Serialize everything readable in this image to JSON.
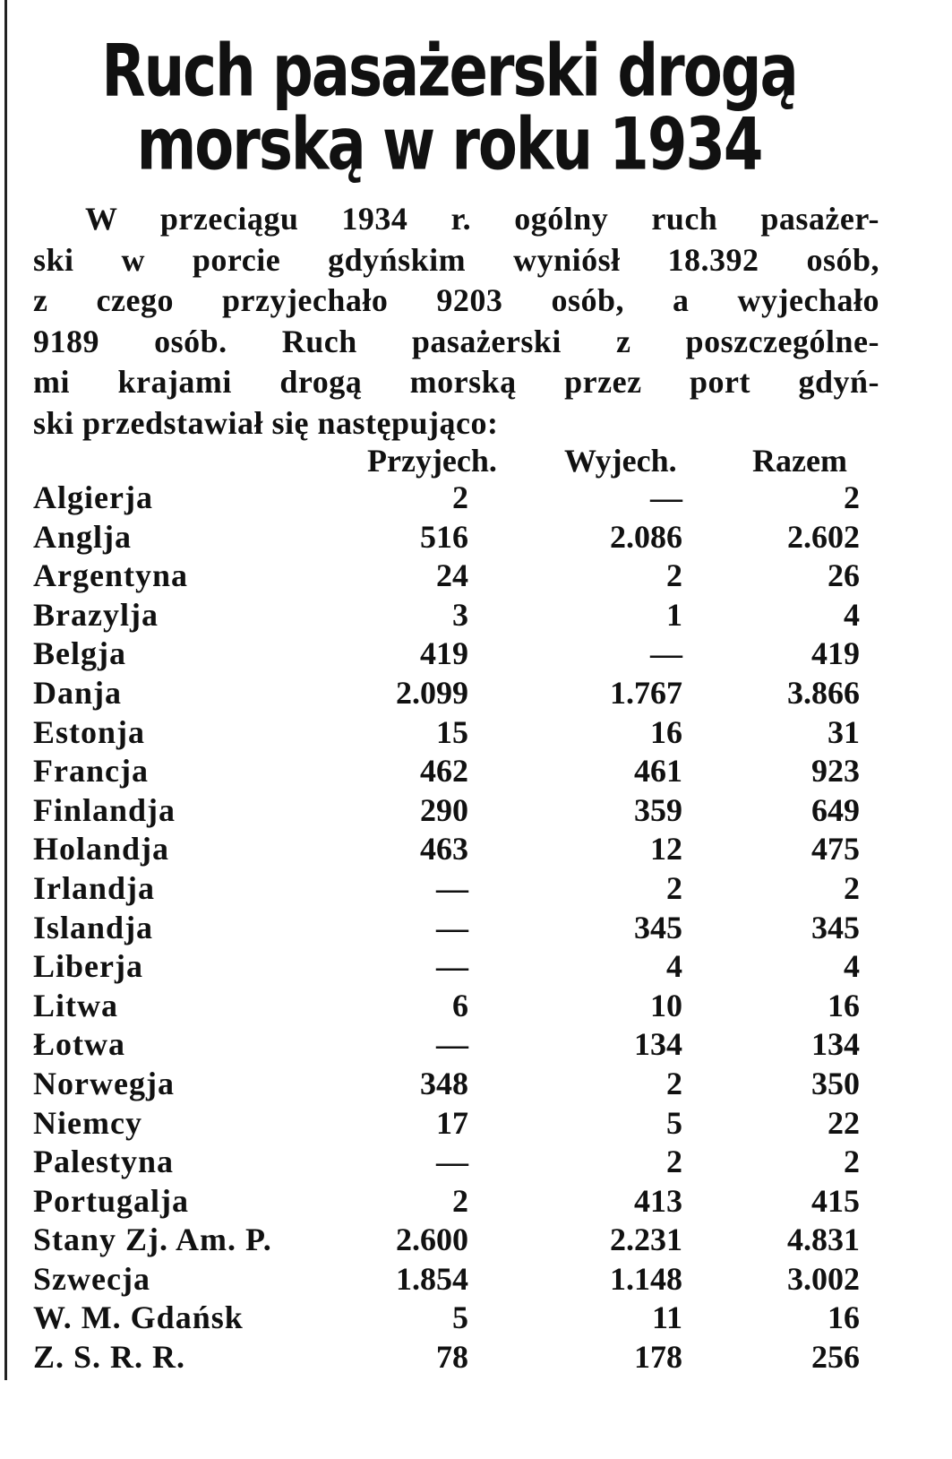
{
  "title": {
    "line1": "Ruch pasażerski drogą",
    "line2": "morską w roku 1934"
  },
  "body_lines": [
    "W przeciągu 1934 r. ogólny ruch pasażer-",
    "ski w porcie gdyńskim wyniósł 18.392 osób,",
    "z czego przyjechało 9203 osób, a wyjechało",
    "9189 osób. Ruch pasażerski z poszczególne-",
    "mi krajami drogą morską przez port gdyń-",
    "ski przedstawiał się następująco:"
  ],
  "table": {
    "headers": [
      "Przyjech.",
      "Wyjech.",
      "Razem"
    ],
    "rows": [
      {
        "country": "Algierja",
        "arrived": "2",
        "departed": "—",
        "total": "2"
      },
      {
        "country": "Anglja",
        "arrived": "516",
        "departed": "2.086",
        "total": "2.602"
      },
      {
        "country": "Argentyna",
        "arrived": "24",
        "departed": "2",
        "total": "26"
      },
      {
        "country": "Brazylja",
        "arrived": "3",
        "departed": "1",
        "total": "4"
      },
      {
        "country": "Belgja",
        "arrived": "419",
        "departed": "—",
        "total": "419"
      },
      {
        "country": "Danja",
        "arrived": "2.099",
        "departed": "1.767",
        "total": "3.866"
      },
      {
        "country": "Estonja",
        "arrived": "15",
        "departed": "16",
        "total": "31"
      },
      {
        "country": "Francja",
        "arrived": "462",
        "departed": "461",
        "total": "923"
      },
      {
        "country": "Finlandja",
        "arrived": "290",
        "departed": "359",
        "total": "649"
      },
      {
        "country": "Holandja",
        "arrived": "463",
        "departed": "12",
        "total": "475"
      },
      {
        "country": "Irlandja",
        "arrived": "—",
        "departed": "2",
        "total": "2"
      },
      {
        "country": "Islandja",
        "arrived": "—",
        "departed": "345",
        "total": "345"
      },
      {
        "country": "Liberja",
        "arrived": "—",
        "departed": "4",
        "total": "4"
      },
      {
        "country": "Litwa",
        "arrived": "6",
        "departed": "10",
        "total": "16"
      },
      {
        "country": "Łotwa",
        "arrived": "—",
        "departed": "134",
        "total": "134"
      },
      {
        "country": "Norwegja",
        "arrived": "348",
        "departed": "2",
        "total": "350"
      },
      {
        "country": "Niemcy",
        "arrived": "17",
        "departed": "5",
        "total": "22"
      },
      {
        "country": "Palestyna",
        "arrived": "—",
        "departed": "2",
        "total": "2"
      },
      {
        "country": "Portugalja",
        "arrived": "2",
        "departed": "413",
        "total": "415"
      },
      {
        "country": "Stany Zj. Am. P.",
        "arrived": "2.600",
        "departed": "2.231",
        "total": "4.831"
      },
      {
        "country": "Szwecja",
        "arrived": "1.854",
        "departed": "1.148",
        "total": "3.002"
      },
      {
        "country": "W. M. Gdańsk",
        "arrived": "5",
        "departed": "11",
        "total": "16"
      },
      {
        "country": "Z. S. R. R.",
        "arrived": "78",
        "departed": "178",
        "total": "256"
      }
    ]
  }
}
